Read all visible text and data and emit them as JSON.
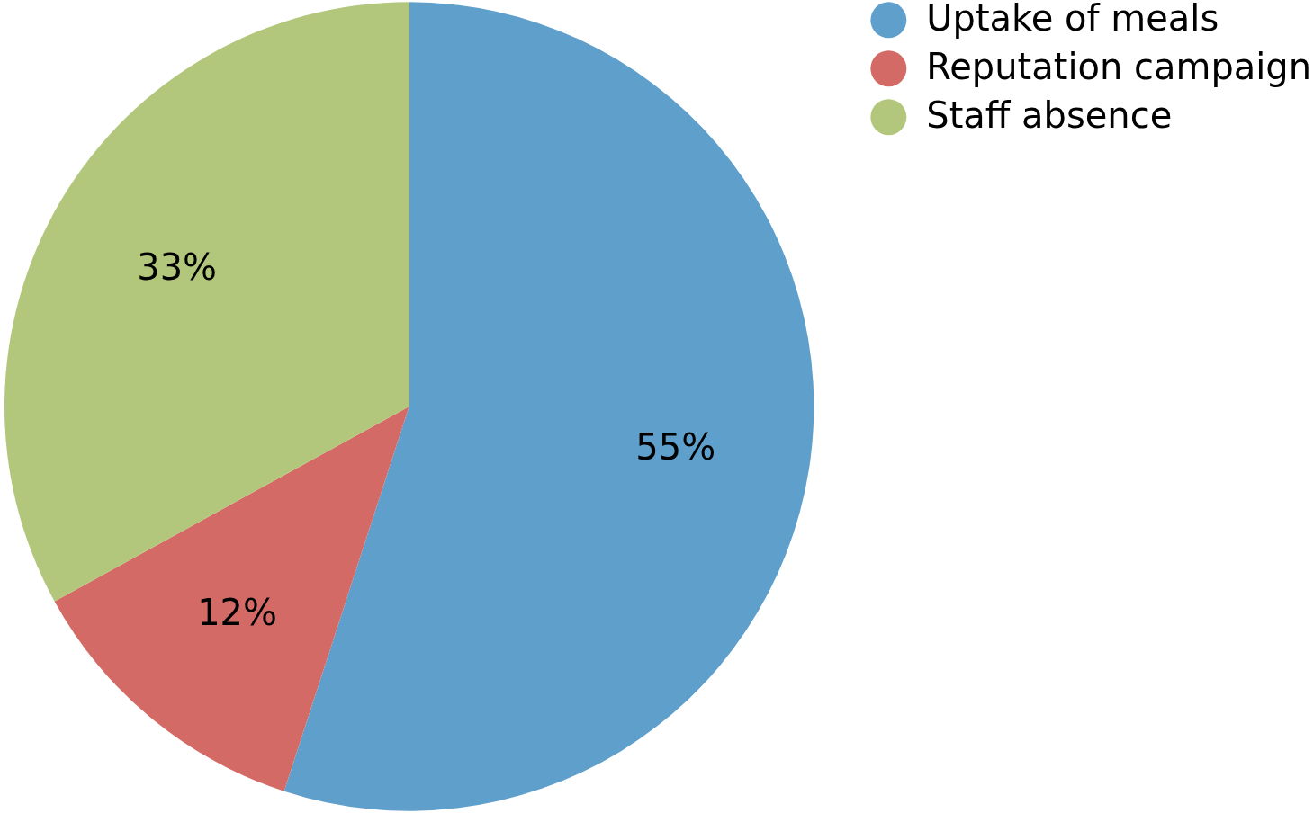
{
  "chart_data": {
    "type": "pie",
    "categories": [
      "Uptake of meals",
      "Reputation campaign",
      "Staff absence"
    ],
    "values": [
      55,
      12,
      33
    ],
    "colors": [
      "#5f9fcb",
      "#d46a65",
      "#b3c77c"
    ],
    "value_labels": [
      "55%",
      "12%",
      "33%"
    ],
    "legend": "right"
  }
}
